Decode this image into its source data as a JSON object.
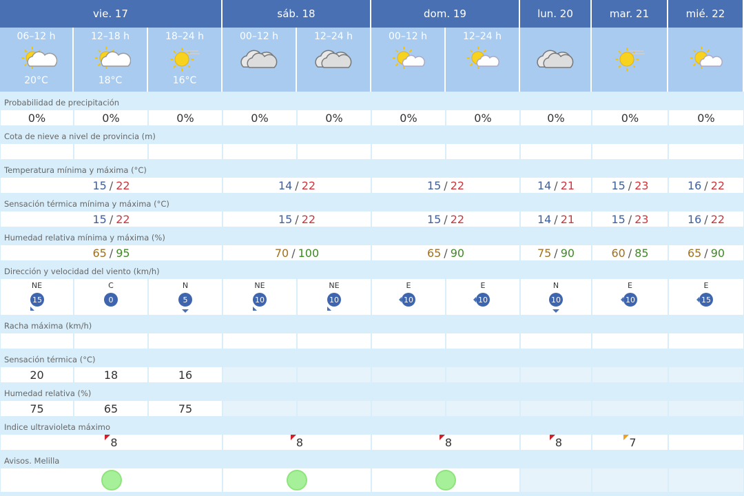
{
  "days": [
    "vie. 17",
    "sáb. 18",
    "dom. 19",
    "lun. 20",
    "mar. 21",
    "mié. 22"
  ],
  "periods": [
    "06–12 h",
    "12–18 h",
    "18–24 h",
    "00–12 h",
    "12–24 h",
    "00–12 h",
    "12–24 h"
  ],
  "period_temps": [
    "20°C",
    "18°C",
    "16°C"
  ],
  "separator": "/",
  "rows": {
    "precipitation": {
      "label": "Probabilidad de precipitación",
      "values": [
        "0%",
        "0%",
        "0%",
        "0%",
        "0%",
        "0%",
        "0%",
        "0%",
        "0%",
        "0%"
      ]
    },
    "snow_level": {
      "label": "Cota de nieve a nivel de provincia (m)"
    },
    "temperature": {
      "label": "Temperatura mínima y máxima (°C)",
      "min": [
        15,
        14,
        15,
        14,
        15,
        16
      ],
      "max": [
        22,
        22,
        22,
        21,
        23,
        22
      ]
    },
    "feels_like_range": {
      "label": "Sensación térmica mínima y máxima (°C)",
      "min": [
        15,
        15,
        15,
        14,
        15,
        16
      ],
      "max": [
        22,
        22,
        22,
        21,
        23,
        22
      ]
    },
    "humidity_range": {
      "label": "Humedad relativa mínima y máxima (%)",
      "min": [
        65,
        70,
        65,
        75,
        60,
        65
      ],
      "max": [
        95,
        100,
        90,
        90,
        85,
        90
      ]
    },
    "wind": {
      "label": "Dirección y velocidad del viento (km/h)",
      "directions": [
        "NE",
        "C",
        "N",
        "NE",
        "NE",
        "E",
        "E",
        "N",
        "E",
        "E"
      ],
      "speeds": [
        15,
        0,
        5,
        10,
        10,
        10,
        10,
        10,
        10,
        15
      ]
    },
    "gust": {
      "label": "Racha máxima (km/h)"
    },
    "feels_like": {
      "label": "Sensación térmica (°C)",
      "values": [
        20,
        18,
        16
      ]
    },
    "humidity": {
      "label": "Humedad relativa (%)",
      "values": [
        75,
        65,
        75
      ]
    },
    "uv": {
      "label": "Indice ultravioleta máximo",
      "values": [
        8,
        8,
        8,
        8,
        7
      ]
    },
    "warnings": {
      "label": "Avisos. Melilla"
    }
  }
}
